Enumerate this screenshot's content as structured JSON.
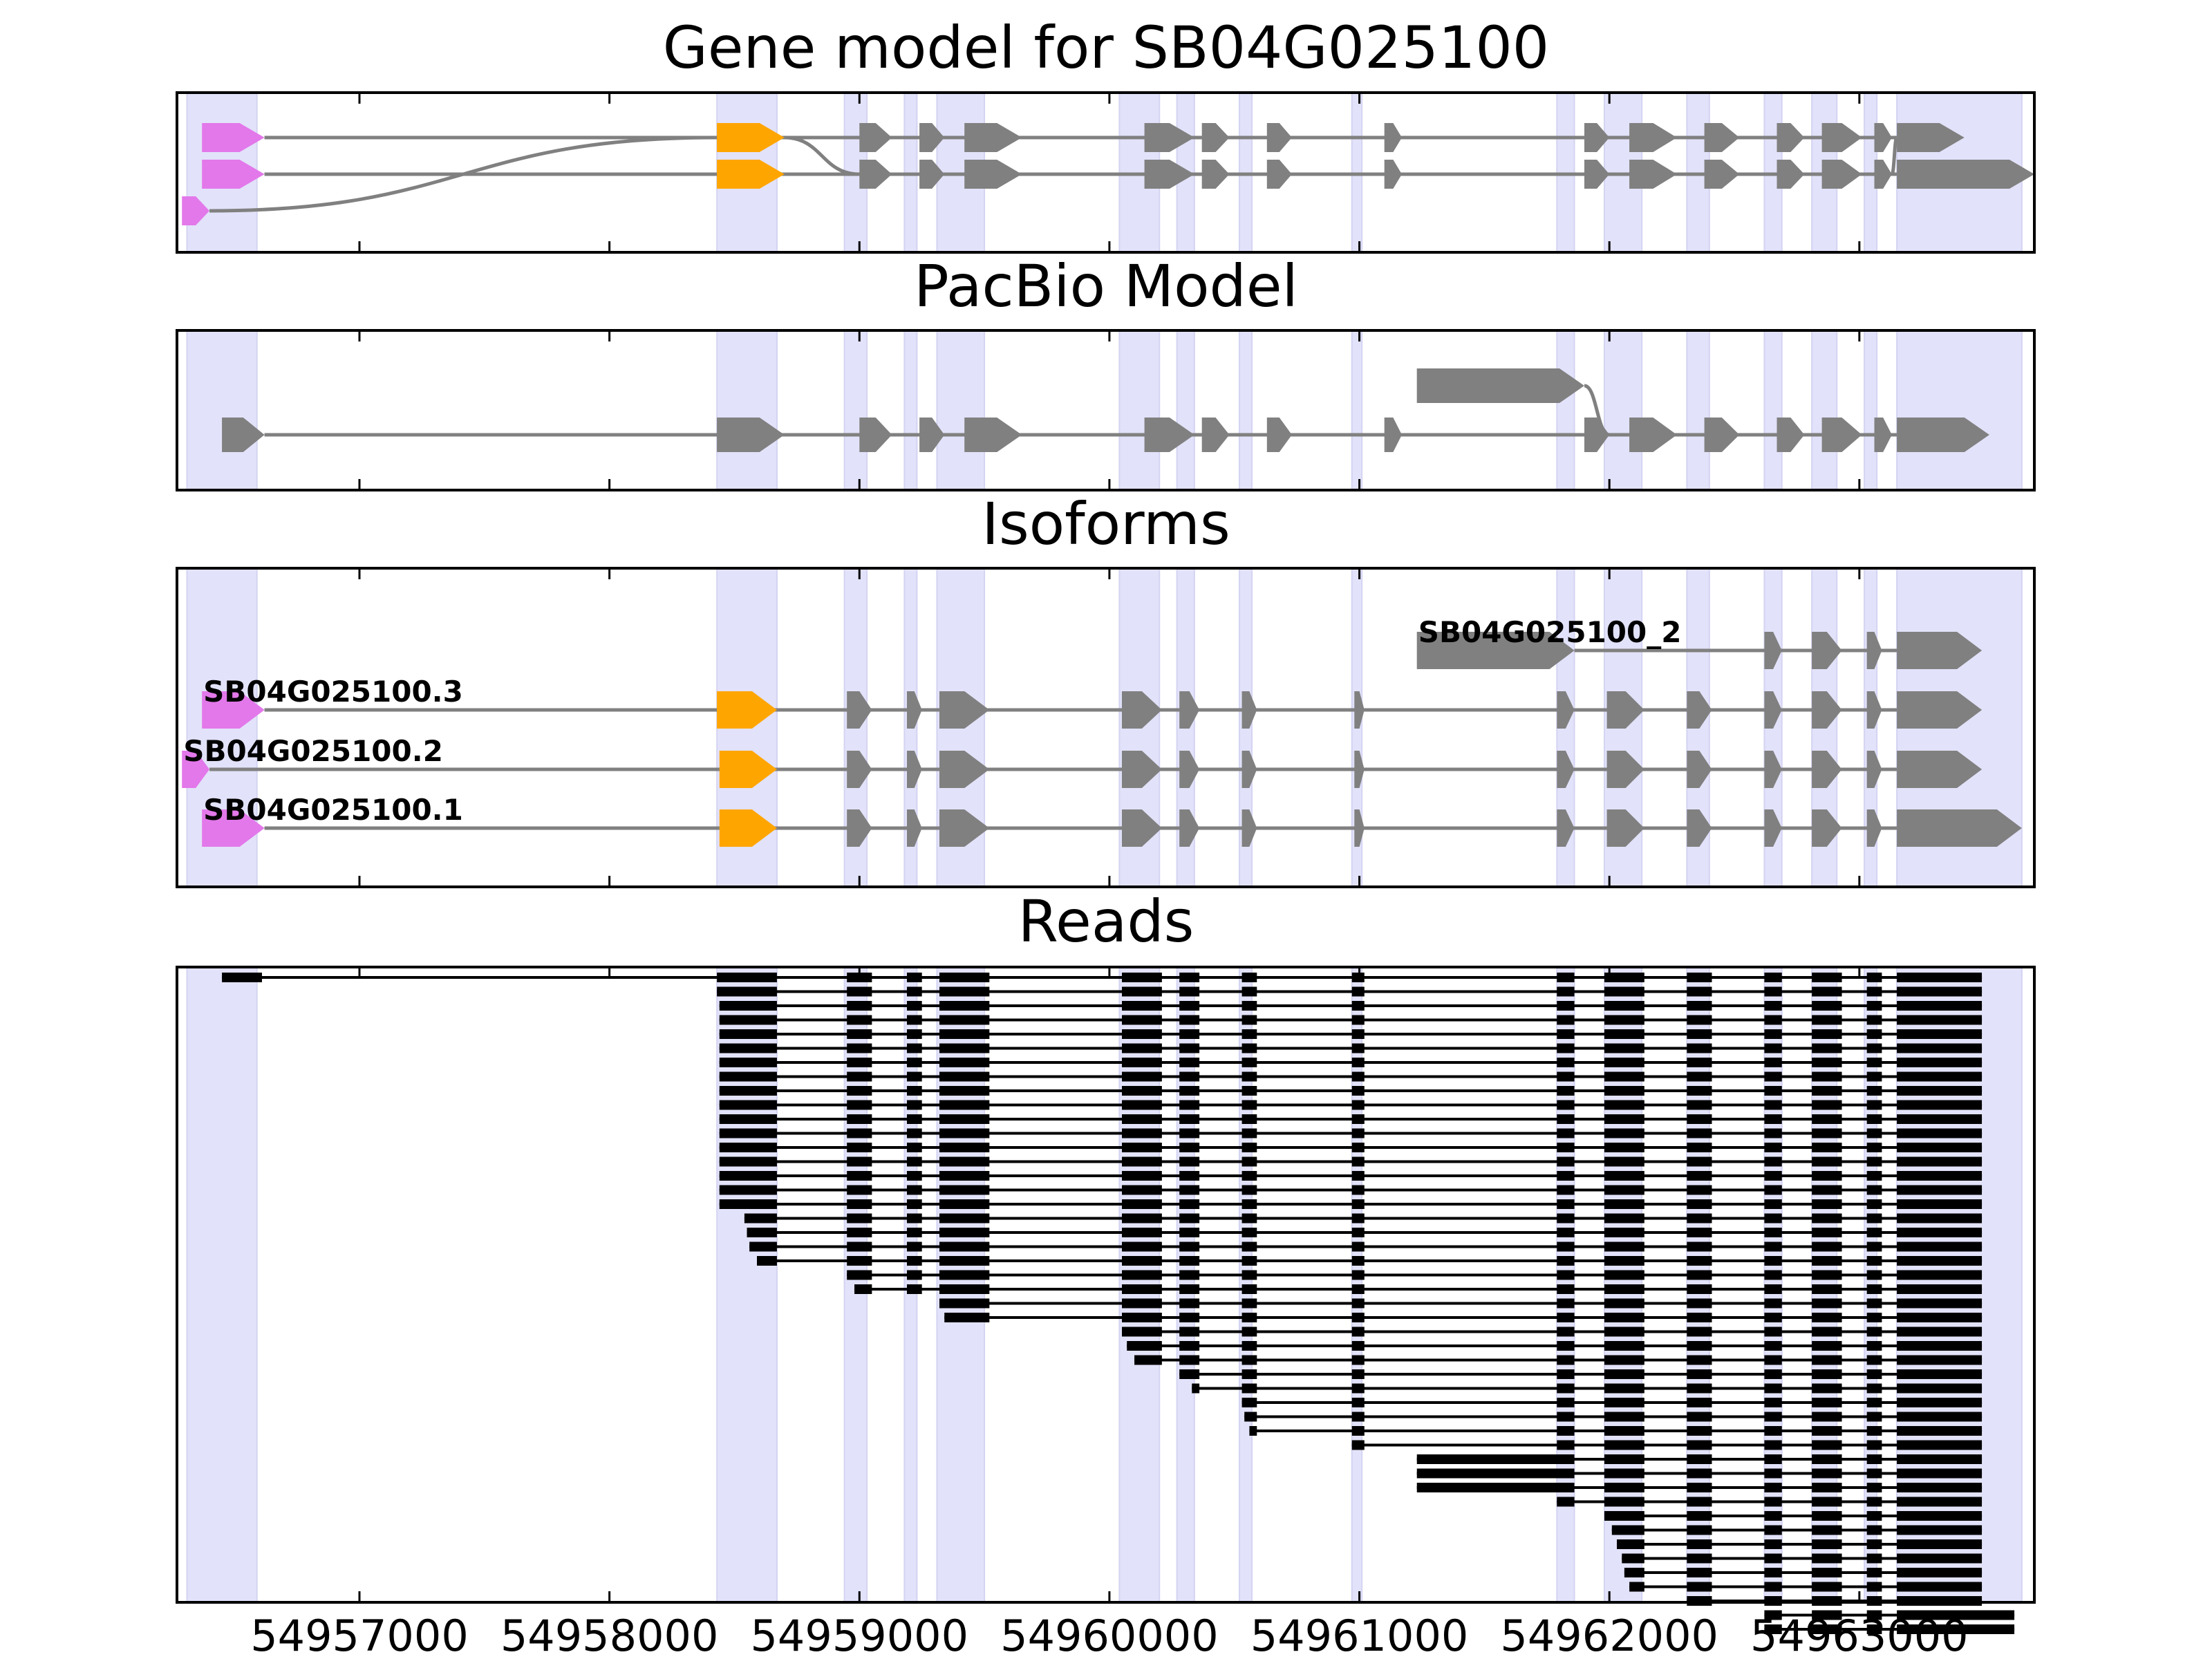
{
  "colors": {
    "exon_region": "#e2e2fa",
    "utr5": "#e378ea",
    "cds_start": "#ffa500",
    "exon": "#808080",
    "intron": "#808080",
    "read": "#000000"
  },
  "chart_data": {
    "type": "gene-track",
    "xlim": [
      54956270,
      54963700
    ],
    "xticks": [
      54957000,
      54958000,
      54959000,
      54960000,
      54961000,
      54962000,
      54963000
    ],
    "xtick_labels": [
      "54957000",
      "54958000",
      "54959000",
      "54960000",
      "54961000",
      "54962000",
      "54963000"
    ],
    "exon_regions": [
      [
        54956310,
        54956590
      ],
      [
        54958430,
        54958670
      ],
      [
        54958940,
        54959030
      ],
      [
        54959180,
        54959230
      ],
      [
        54959310,
        54959500
      ],
      [
        54960040,
        54960200
      ],
      [
        54960270,
        54960340
      ],
      [
        54960520,
        54960570
      ],
      [
        54960970,
        54961010
      ],
      [
        54961790,
        54961860
      ],
      [
        54961980,
        54962130
      ],
      [
        54962310,
        54962400
      ],
      [
        54962620,
        54962690
      ],
      [
        54962810,
        54962910
      ],
      [
        54963020,
        54963070
      ],
      [
        54963150,
        54963650
      ]
    ],
    "panels": [
      {
        "title": "Gene model for SB04G025100",
        "kind": "gene_model",
        "transcripts": [
          {
            "row": 3,
            "exons": [
              [
                54956370,
                54956620,
                "utr5"
              ],
              [
                54958430,
                54958700,
                "cds_start"
              ],
              [
                54959000,
                54959130,
                "exon"
              ],
              [
                54959240,
                54959340,
                "exon"
              ],
              [
                54959420,
                54959650,
                "exon"
              ],
              [
                54960140,
                54960340,
                "exon"
              ],
              [
                54960370,
                54960480,
                "exon"
              ],
              [
                54960630,
                54960730,
                "exon"
              ],
              [
                54961100,
                54961170,
                "exon"
              ],
              [
                54961900,
                54962000,
                "exon"
              ],
              [
                54962080,
                54962270,
                "exon"
              ],
              [
                54962380,
                54962520,
                "exon"
              ],
              [
                54962670,
                54962780,
                "exon"
              ],
              [
                54962850,
                54963010,
                "exon"
              ],
              [
                54963060,
                54963130,
                "exon"
              ],
              [
                54963150,
                54963420,
                "exon"
              ]
            ],
            "branches": [
              [
                54958700,
                3,
                54959000,
                2
              ],
              [
                54963130,
                2,
                54963150,
                3
              ]
            ]
          },
          {
            "row": 2,
            "exons": [
              [
                54956370,
                54956620,
                "utr5"
              ],
              [
                54958430,
                54958700,
                "cds_start"
              ],
              [
                54959000,
                54959130,
                "exon"
              ],
              [
                54959240,
                54959340,
                "exon"
              ],
              [
                54959420,
                54959650,
                "exon"
              ],
              [
                54960140,
                54960340,
                "exon"
              ],
              [
                54960370,
                54960480,
                "exon"
              ],
              [
                54960630,
                54960730,
                "exon"
              ],
              [
                54961100,
                54961170,
                "exon"
              ],
              [
                54961900,
                54962000,
                "exon"
              ],
              [
                54962080,
                54962270,
                "exon"
              ],
              [
                54962380,
                54962520,
                "exon"
              ],
              [
                54962670,
                54962780,
                "exon"
              ],
              [
                54962850,
                54963010,
                "exon"
              ],
              [
                54963060,
                54963130,
                "exon"
              ],
              [
                54963150,
                54963700,
                "exon"
              ]
            ]
          },
          {
            "row": 1,
            "exons": [
              [
                54956290,
                54956400,
                "utr5"
              ]
            ],
            "branches": [
              [
                54956400,
                1,
                54958430,
                3
              ]
            ]
          }
        ]
      },
      {
        "title": "PacBio Model",
        "kind": "gene_model",
        "transcripts": [
          {
            "row": 1,
            "exons": [
              [
                54956450,
                54956620,
                "exon"
              ],
              [
                54958430,
                54958700,
                "exon"
              ],
              [
                54959000,
                54959130,
                "exon"
              ],
              [
                54959240,
                54959340,
                "exon"
              ],
              [
                54959420,
                54959650,
                "exon"
              ],
              [
                54960140,
                54960340,
                "exon"
              ],
              [
                54960370,
                54960480,
                "exon"
              ],
              [
                54960630,
                54960730,
                "exon"
              ],
              [
                54961100,
                54961170,
                "exon"
              ],
              [
                54961900,
                54962000,
                "exon"
              ],
              [
                54962080,
                54962270,
                "exon"
              ],
              [
                54962380,
                54962520,
                "exon"
              ],
              [
                54962670,
                54962780,
                "exon"
              ],
              [
                54962850,
                54963010,
                "exon"
              ],
              [
                54963060,
                54963130,
                "exon"
              ],
              [
                54963150,
                54963520,
                "exon"
              ]
            ]
          },
          {
            "row": 2,
            "exons": [
              [
                54961230,
                54961900,
                "exon"
              ]
            ],
            "branches": [
              [
                54961900,
                2,
                54962000,
                1
              ]
            ]
          }
        ]
      },
      {
        "title": "Isoforms",
        "kind": "isoforms",
        "isoforms": [
          {
            "name": "SB04G025100_2",
            "row": 4,
            "exons": [
              [
                54961230,
                54961860,
                "exon"
              ],
              [
                54962620,
                54962690,
                "exon"
              ],
              [
                54962810,
                54962930,
                "exon"
              ],
              [
                54963030,
                54963090,
                "exon"
              ],
              [
                54963150,
                54963490,
                "exon"
              ]
            ]
          },
          {
            "name": "SB04G025100.3",
            "row": 3,
            "exons": [
              [
                54956370,
                54956620,
                "utr5"
              ],
              [
                54958430,
                54958670,
                "cds_start"
              ],
              [
                54958950,
                54959050,
                "exon"
              ],
              [
                54959190,
                54959250,
                "exon"
              ],
              [
                54959320,
                54959520,
                "exon"
              ],
              [
                54960050,
                54960210,
                "exon"
              ],
              [
                54960280,
                54960360,
                "exon"
              ],
              [
                54960530,
                54960590,
                "exon"
              ],
              [
                54960980,
                54961020,
                "exon"
              ],
              [
                54961790,
                54961860,
                "exon"
              ],
              [
                54961990,
                54962140,
                "exon"
              ],
              [
                54962310,
                54962410,
                "exon"
              ],
              [
                54962620,
                54962690,
                "exon"
              ],
              [
                54962810,
                54962930,
                "exon"
              ],
              [
                54963030,
                54963090,
                "exon"
              ],
              [
                54963150,
                54963490,
                "exon"
              ]
            ]
          },
          {
            "name": "SB04G025100.2",
            "row": 2,
            "exons": [
              [
                54956290,
                54956400,
                "utr5"
              ],
              [
                54958440,
                54958670,
                "cds_start"
              ],
              [
                54958950,
                54959050,
                "exon"
              ],
              [
                54959190,
                54959250,
                "exon"
              ],
              [
                54959320,
                54959520,
                "exon"
              ],
              [
                54960050,
                54960210,
                "exon"
              ],
              [
                54960280,
                54960360,
                "exon"
              ],
              [
                54960530,
                54960590,
                "exon"
              ],
              [
                54960980,
                54961020,
                "exon"
              ],
              [
                54961790,
                54961860,
                "exon"
              ],
              [
                54961990,
                54962140,
                "exon"
              ],
              [
                54962310,
                54962410,
                "exon"
              ],
              [
                54962620,
                54962690,
                "exon"
              ],
              [
                54962810,
                54962930,
                "exon"
              ],
              [
                54963030,
                54963090,
                "exon"
              ],
              [
                54963150,
                54963490,
                "exon"
              ]
            ]
          },
          {
            "name": "SB04G025100.1",
            "row": 1,
            "exons": [
              [
                54956370,
                54956620,
                "utr5"
              ],
              [
                54958440,
                54958670,
                "cds_start"
              ],
              [
                54958950,
                54959050,
                "exon"
              ],
              [
                54959190,
                54959250,
                "exon"
              ],
              [
                54959320,
                54959520,
                "exon"
              ],
              [
                54960050,
                54960210,
                "exon"
              ],
              [
                54960280,
                54960360,
                "exon"
              ],
              [
                54960530,
                54960590,
                "exon"
              ],
              [
                54960980,
                54961020,
                "exon"
              ],
              [
                54961790,
                54961860,
                "exon"
              ],
              [
                54961990,
                54962140,
                "exon"
              ],
              [
                54962310,
                54962410,
                "exon"
              ],
              [
                54962620,
                54962690,
                "exon"
              ],
              [
                54962810,
                54962930,
                "exon"
              ],
              [
                54963030,
                54963090,
                "exon"
              ],
              [
                54963150,
                54963650,
                "exon"
              ]
            ]
          }
        ]
      },
      {
        "title": "Reads",
        "kind": "reads",
        "read_template": [
          [
            54958430,
            54958670
          ],
          [
            54958950,
            54959050
          ],
          [
            54959190,
            54959250
          ],
          [
            54959320,
            54959520
          ],
          [
            54960050,
            54960210
          ],
          [
            54960280,
            54960360
          ],
          [
            54960530,
            54960590
          ],
          [
            54960970,
            54961020
          ],
          [
            54961790,
            54961860
          ],
          [
            54961980,
            54962140
          ],
          [
            54962310,
            54962410
          ],
          [
            54962620,
            54962690
          ],
          [
            54962810,
            54962930
          ],
          [
            54963030,
            54963090
          ],
          [
            54963150,
            54963490
          ]
        ],
        "reads": [
          {
            "start": 54956450,
            "end": 54963490,
            "first_exon": [
              54956450,
              54956610
            ]
          },
          {
            "start": 54958430,
            "end": 54963490
          },
          {
            "start": 54958440,
            "end": 54963490
          },
          {
            "start": 54958440,
            "end": 54963490
          },
          {
            "start": 54958440,
            "end": 54963490
          },
          {
            "start": 54958440,
            "end": 54963490
          },
          {
            "start": 54958440,
            "end": 54963490
          },
          {
            "start": 54958440,
            "end": 54963490
          },
          {
            "start": 54958440,
            "end": 54963490
          },
          {
            "start": 54958440,
            "end": 54963490
          },
          {
            "start": 54958440,
            "end": 54963490
          },
          {
            "start": 54958440,
            "end": 54963490
          },
          {
            "start": 54958440,
            "end": 54963490
          },
          {
            "start": 54958440,
            "end": 54963490
          },
          {
            "start": 54958440,
            "end": 54963490
          },
          {
            "start": 54958440,
            "end": 54963490
          },
          {
            "start": 54958440,
            "end": 54963490
          },
          {
            "start": 54958540,
            "end": 54963490
          },
          {
            "start": 54958550,
            "end": 54963490
          },
          {
            "start": 54958560,
            "end": 54963490
          },
          {
            "start": 54958590,
            "end": 54963490
          },
          {
            "start": 54958950,
            "end": 54963490
          },
          {
            "start": 54958980,
            "end": 54963490
          },
          {
            "start": 54959320,
            "end": 54963490
          },
          {
            "start": 54959340,
            "end": 54963490
          },
          {
            "start": 54960050,
            "end": 54963490
          },
          {
            "start": 54960070,
            "end": 54963490
          },
          {
            "start": 54960100,
            "end": 54963490
          },
          {
            "start": 54960280,
            "end": 54963490
          },
          {
            "start": 54960330,
            "end": 54963490
          },
          {
            "start": 54960530,
            "end": 54963490
          },
          {
            "start": 54960540,
            "end": 54963490
          },
          {
            "start": 54960560,
            "end": 54963490
          },
          {
            "start": 54960970,
            "end": 54963490
          },
          {
            "start": 54961230,
            "end": 54963490,
            "first_exon": [
              54961230,
              54961860
            ]
          },
          {
            "start": 54961230,
            "end": 54963490,
            "first_exon": [
              54961230,
              54961860
            ]
          },
          {
            "start": 54961230,
            "end": 54963490,
            "first_exon": [
              54961230,
              54961860
            ]
          },
          {
            "start": 54961780,
            "end": 54963490
          },
          {
            "start": 54961980,
            "end": 54963490
          },
          {
            "start": 54962010,
            "end": 54963490
          },
          {
            "start": 54962030,
            "end": 54963490
          },
          {
            "start": 54962050,
            "end": 54963490
          },
          {
            "start": 54962060,
            "end": 54963490
          },
          {
            "start": 54962080,
            "end": 54963490
          },
          {
            "start": 54962310,
            "end": 54963490
          },
          {
            "start": 54962620,
            "end": 54963620
          },
          {
            "start": 54962620,
            "end": 54963620
          }
        ]
      }
    ]
  }
}
